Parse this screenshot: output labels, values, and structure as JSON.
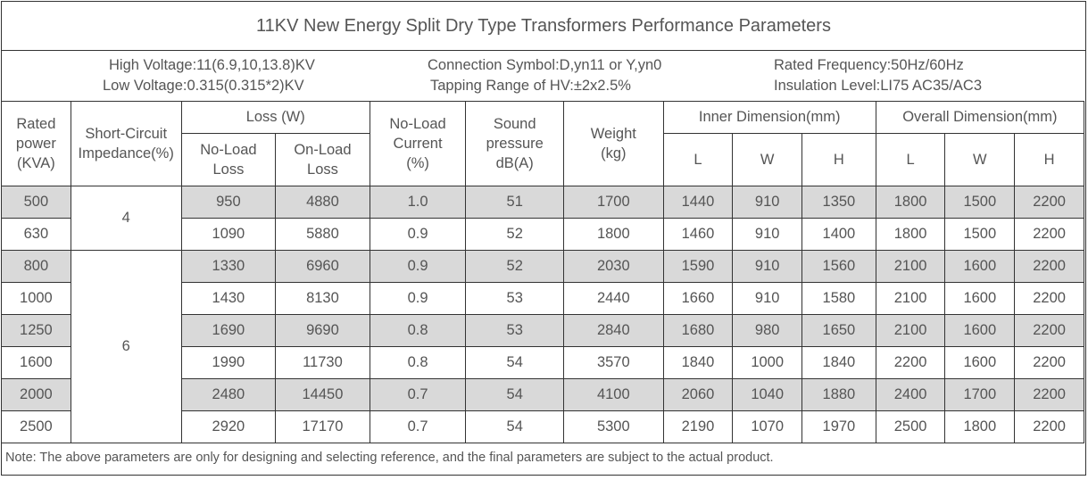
{
  "title": "11KV New Energy Split Dry Type Transformers Performance Parameters",
  "info": {
    "high_voltage": "High Voltage:11(6.9,10,13.8)KV",
    "low_voltage": "Low Voltage:0.315(0.315*2)KV",
    "connection_symbol": "Connection Symbol:D,yn11 or Y,yn0",
    "tapping_range": "Tapping Range of HV:±2x2.5%",
    "rated_frequency": "Rated Frequency:50Hz/60Hz",
    "insulation_level": "Insulation Level:LI75 AC35/AC3"
  },
  "headers": {
    "rated_power": [
      "Rated",
      "power",
      "(KVA)"
    ],
    "short_circuit": [
      "Short-Circuit",
      "Impedance(%)"
    ],
    "loss": "Loss (W)",
    "no_load_loss": [
      "No-Load",
      "Loss"
    ],
    "on_load_loss": [
      "On-Load",
      "Loss"
    ],
    "no_load_current": [
      "No-Load",
      "Current",
      "(%)"
    ],
    "sound_pressure": [
      "Sound",
      "pressure",
      "dB(A)"
    ],
    "weight": [
      "Weight",
      "(kg)"
    ],
    "inner_dimension": "Inner Dimension(mm)",
    "overall_dimension": "Overall Dimension(mm)",
    "dim_l": "L",
    "dim_w": "W",
    "dim_h": "H"
  },
  "impedance_groups": [
    {
      "value": "4",
      "rows": 2
    },
    {
      "value": "6",
      "rows": 6
    }
  ],
  "rows": [
    {
      "power": "500",
      "no_load": "950",
      "on_load": "4880",
      "current": "1.0",
      "sound": "51",
      "weight": "1700",
      "inner": [
        "1440",
        "910",
        "1350"
      ],
      "overall": [
        "1800",
        "1500",
        "2200"
      ]
    },
    {
      "power": "630",
      "no_load": "1090",
      "on_load": "5880",
      "current": "0.9",
      "sound": "52",
      "weight": "1800",
      "inner": [
        "1460",
        "910",
        "1400"
      ],
      "overall": [
        "1800",
        "1500",
        "2200"
      ]
    },
    {
      "power": "800",
      "no_load": "1330",
      "on_load": "6960",
      "current": "0.9",
      "sound": "52",
      "weight": "2030",
      "inner": [
        "1590",
        "910",
        "1560"
      ],
      "overall": [
        "2100",
        "1600",
        "2200"
      ]
    },
    {
      "power": "1000",
      "no_load": "1430",
      "on_load": "8130",
      "current": "0.9",
      "sound": "53",
      "weight": "2440",
      "inner": [
        "1660",
        "910",
        "1580"
      ],
      "overall": [
        "2100",
        "1600",
        "2200"
      ]
    },
    {
      "power": "1250",
      "no_load": "1690",
      "on_load": "9690",
      "current": "0.8",
      "sound": "53",
      "weight": "2840",
      "inner": [
        "1680",
        "980",
        "1650"
      ],
      "overall": [
        "2100",
        "1600",
        "2200"
      ]
    },
    {
      "power": "1600",
      "no_load": "1990",
      "on_load": "11730",
      "current": "0.8",
      "sound": "54",
      "weight": "3570",
      "inner": [
        "1840",
        "1000",
        "1840"
      ],
      "overall": [
        "2200",
        "1600",
        "2200"
      ]
    },
    {
      "power": "2000",
      "no_load": "2480",
      "on_load": "14450",
      "current": "0.7",
      "sound": "54",
      "weight": "4100",
      "inner": [
        "2060",
        "1040",
        "1880"
      ],
      "overall": [
        "2400",
        "1700",
        "2200"
      ]
    },
    {
      "power": "2500",
      "no_load": "2920",
      "on_load": "17170",
      "current": "0.7",
      "sound": "54",
      "weight": "5300",
      "inner": [
        "2190",
        "1070",
        "1970"
      ],
      "overall": [
        "2500",
        "1800",
        "2200"
      ]
    }
  ],
  "note": "Note: The above parameters are only for designing and selecting  reference, and the final parameters are subject to the actual product."
}
